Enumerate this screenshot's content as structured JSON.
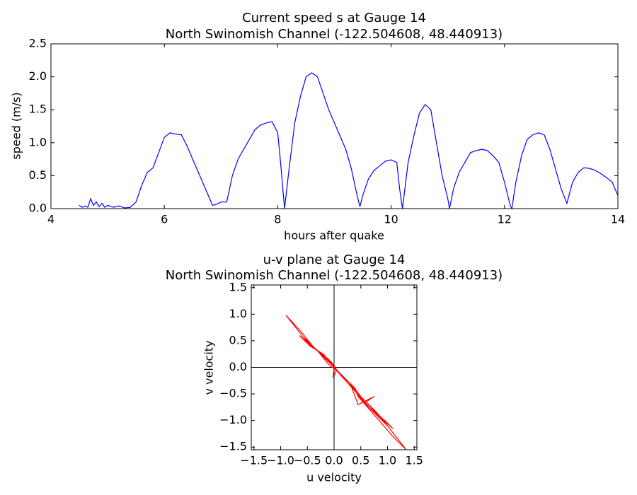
{
  "chart_data": [
    {
      "type": "line",
      "title": "Current speed s at Gauge 14",
      "subtitle": "North Swinomish Channel  (-122.504608, 48.440913)",
      "x_label": "hours after quake",
      "y_label": "speed (m/s)",
      "color": "#0000ff",
      "xlim": [
        4,
        14
      ],
      "xticks": [
        4,
        6,
        8,
        10,
        12,
        14
      ],
      "ylim": [
        0,
        2.5
      ],
      "yticks": [
        {
          "value": 0,
          "label": "0.0"
        },
        0.5,
        {
          "value": 1,
          "label": "1.0"
        },
        1.5,
        {
          "value": 2,
          "label": "2.0"
        },
        2.5
      ],
      "x": [
        4.5,
        4.55,
        4.6,
        4.65,
        4.7,
        4.75,
        4.8,
        4.85,
        4.9,
        4.95,
        5.0,
        5.1,
        5.2,
        5.3,
        5.4,
        5.5,
        5.6,
        5.7,
        5.8,
        5.9,
        6.0,
        6.1,
        6.2,
        6.3,
        6.4,
        6.5,
        6.6,
        6.7,
        6.8,
        6.85,
        6.9,
        7.0,
        7.1,
        7.2,
        7.3,
        7.4,
        7.5,
        7.6,
        7.7,
        7.8,
        7.9,
        8.0,
        8.05,
        8.12,
        8.2,
        8.3,
        8.4,
        8.5,
        8.6,
        8.7,
        8.8,
        8.9,
        9.0,
        9.1,
        9.2,
        9.3,
        9.4,
        9.45,
        9.5,
        9.6,
        9.7,
        9.8,
        9.9,
        10.0,
        10.1,
        10.15,
        10.2,
        10.3,
        10.4,
        10.5,
        10.6,
        10.7,
        10.8,
        10.9,
        11.0,
        11.03,
        11.1,
        11.2,
        11.3,
        11.4,
        11.5,
        11.6,
        11.7,
        11.8,
        11.9,
        12.0,
        12.1,
        12.13,
        12.2,
        12.3,
        12.4,
        12.5,
        12.6,
        12.7,
        12.8,
        12.9,
        13.0,
        13.1,
        13.2,
        13.3,
        13.4,
        13.5,
        13.6,
        13.7,
        13.8,
        13.9,
        14.0
      ],
      "values": [
        0.05,
        0.02,
        0.04,
        0.02,
        0.15,
        0.05,
        0.1,
        0.03,
        0.08,
        0.02,
        0.05,
        0.02,
        0.04,
        0.01,
        0.02,
        0.1,
        0.35,
        0.55,
        0.62,
        0.85,
        1.08,
        1.15,
        1.13,
        1.12,
        0.95,
        0.75,
        0.55,
        0.35,
        0.15,
        0.05,
        0.06,
        0.1,
        0.1,
        0.5,
        0.75,
        0.9,
        1.05,
        1.2,
        1.27,
        1.3,
        1.32,
        1.15,
        0.7,
        0.0,
        0.6,
        1.3,
        1.7,
        2.0,
        2.06,
        2.0,
        1.75,
        1.5,
        1.3,
        1.1,
        0.9,
        0.6,
        0.2,
        0.03,
        0.2,
        0.45,
        0.58,
        0.65,
        0.72,
        0.74,
        0.7,
        0.3,
        0.0,
        0.7,
        1.1,
        1.45,
        1.58,
        1.5,
        1.0,
        0.5,
        0.15,
        0.0,
        0.3,
        0.55,
        0.7,
        0.85,
        0.88,
        0.9,
        0.88,
        0.8,
        0.7,
        0.4,
        0.05,
        0.0,
        0.4,
        0.8,
        1.05,
        1.12,
        1.15,
        1.12,
        0.9,
        0.6,
        0.3,
        0.08,
        0.4,
        0.55,
        0.62,
        0.61,
        0.58,
        0.53,
        0.47,
        0.4,
        0.2
      ]
    },
    {
      "type": "line",
      "title": "u-v plane at Gauge 14",
      "subtitle": "North Swinomish Channel  (-122.504608, 48.440913)",
      "x_label": "u velocity",
      "y_label": "v velocity",
      "color": "#ff0000",
      "xlim": [
        -1.55,
        1.55
      ],
      "xticks": [
        {
          "value": -1.5,
          "label": "−1.5"
        },
        {
          "value": -1,
          "label": "−1.0"
        },
        {
          "value": -0.5,
          "label": "−0.5"
        },
        {
          "value": 0,
          "label": "0.0"
        },
        0.5,
        {
          "value": 1,
          "label": "1.0"
        },
        1.5
      ],
      "ylim": [
        -1.55,
        1.55
      ],
      "yticks": [
        {
          "value": -1.5,
          "label": "−1.5"
        },
        {
          "value": -1,
          "label": "−1.0"
        },
        {
          "value": -0.5,
          "label": "−0.5"
        },
        {
          "value": 0,
          "label": "0.0"
        },
        0.5,
        {
          "value": 1,
          "label": "1.0"
        },
        1.5
      ],
      "x": [
        0.02,
        -0.05,
        0.05,
        -0.02,
        0.0,
        -0.2,
        -0.4,
        -0.6,
        -0.9,
        -0.6,
        -0.4,
        -0.2,
        0.0,
        0.3,
        0.45,
        0.75,
        0.7,
        0.6,
        1.0,
        1.35,
        1.1,
        0.8,
        0.45,
        0.4,
        0.2,
        0.0,
        -0.1,
        -0.3,
        -0.55,
        -0.5,
        -0.3,
        -0.1,
        0.1,
        0.35,
        0.5,
        0.8,
        1.0,
        0.85,
        0.5,
        0.3,
        0.05,
        -0.05,
        -0.35,
        -0.65,
        -0.45,
        -0.2,
        0.0,
        0.4,
        0.65,
        0.95,
        1.1,
        0.7,
        0.35,
        0.1,
        -0.05
      ],
      "values": [
        0.02,
        0.05,
        -0.05,
        -0.2,
        0.0,
        0.2,
        0.4,
        0.65,
        0.98,
        0.6,
        0.38,
        0.22,
        0.0,
        -0.3,
        -0.7,
        -0.55,
        -0.58,
        -0.65,
        -1.1,
        -1.55,
        -1.3,
        -0.95,
        -0.55,
        -0.4,
        -0.2,
        0.0,
        0.15,
        0.3,
        0.55,
        0.45,
        0.3,
        0.05,
        -0.1,
        -0.35,
        -0.55,
        -0.85,
        -1.1,
        -0.95,
        -0.6,
        -0.3,
        -0.05,
        0.1,
        0.35,
        0.6,
        0.4,
        0.25,
        0.0,
        -0.45,
        -0.75,
        -1.0,
        -1.15,
        -0.8,
        -0.4,
        -0.12,
        0.05
      ]
    }
  ]
}
